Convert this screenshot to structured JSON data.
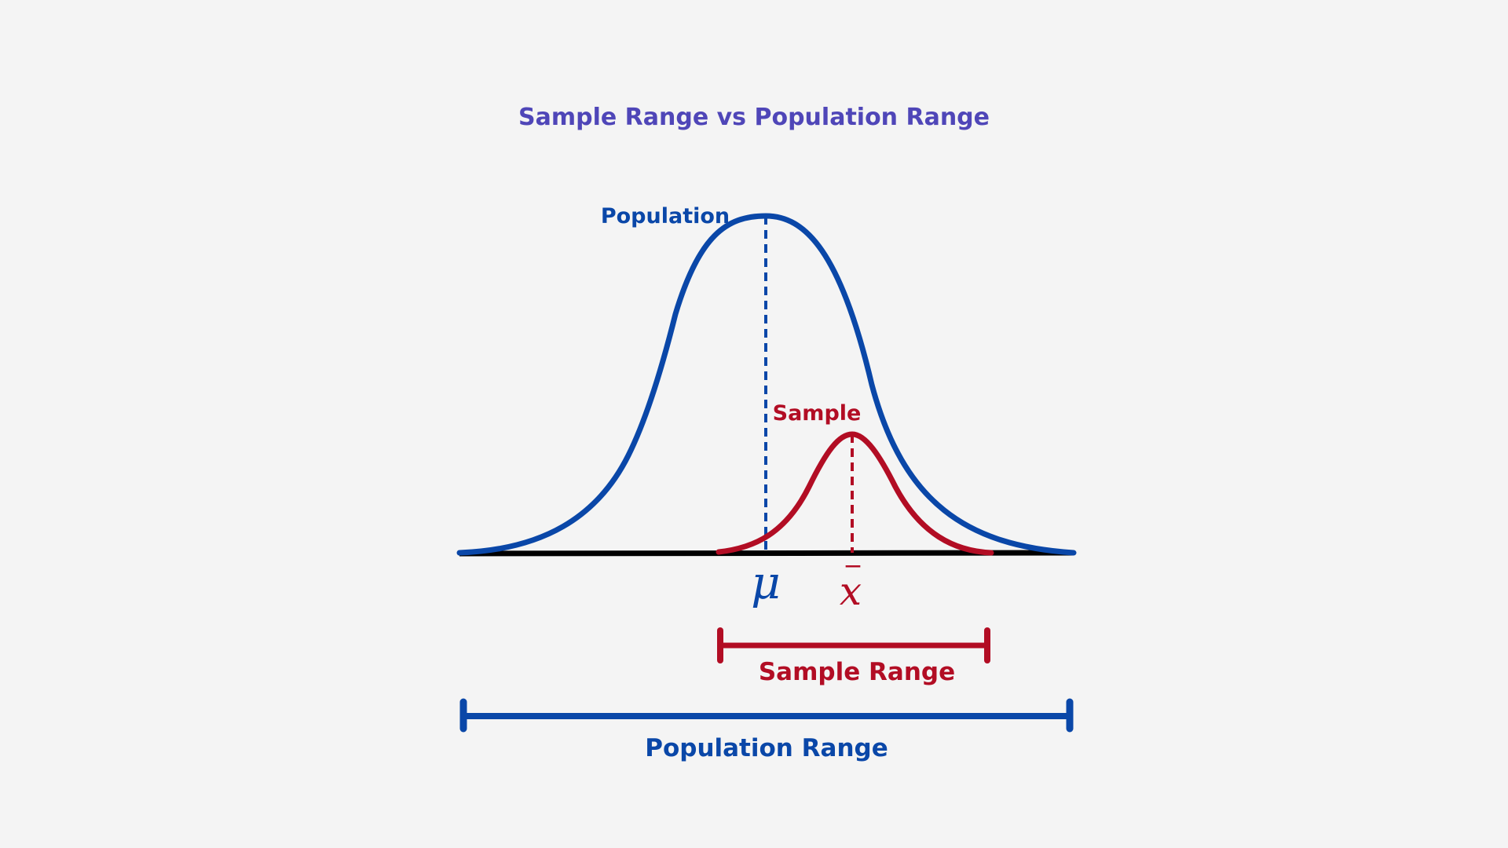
{
  "title": "Sample Range vs Population Range",
  "colors": {
    "background": "#f4f4f4",
    "title": "#4f46b8",
    "population": "#0a47a8",
    "sample": "#b20d24",
    "axis": "#000000"
  },
  "population": {
    "curve_label": "Population",
    "mean_symbol": "μ",
    "range_label": "Population Range"
  },
  "sample": {
    "curve_label": "Sample",
    "mean_symbol": "x",
    "mean_symbol_accent": "‾",
    "range_label": "Sample Range"
  }
}
